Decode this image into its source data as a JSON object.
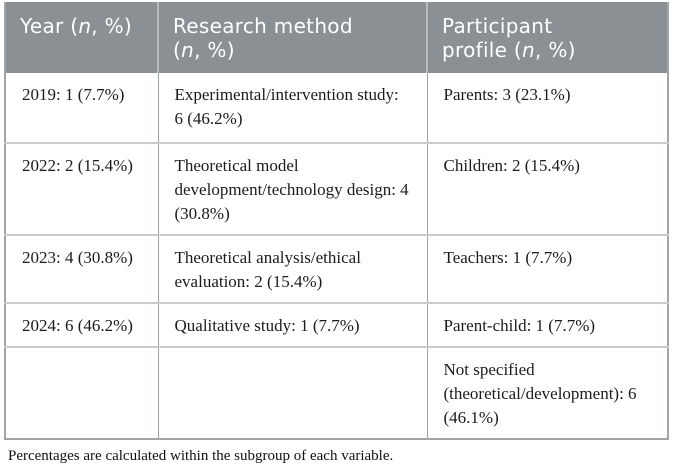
{
  "colors": {
    "header_bg": "#8b9094",
    "header_text": "#ffffff",
    "outer_border": "#a0a5a7",
    "row_divider": "#c7cbcc",
    "column_divider": "#9da2a4",
    "body_text": "#1b1b1b"
  },
  "table": {
    "columns": [
      {
        "id": "year",
        "header_lines": [
          [
            "Year (",
            {
              "i": "n"
            },
            ", %)"
          ]
        ]
      },
      {
        "id": "research-method",
        "header_lines": [
          [
            "Research method"
          ],
          [
            "(",
            {
              "i": "n"
            },
            ", %)"
          ]
        ]
      },
      {
        "id": "participant-profile",
        "header_lines": [
          [
            "Participant"
          ],
          [
            "profile (",
            {
              "i": "n"
            },
            ", %)"
          ]
        ]
      }
    ],
    "rows": [
      [
        "2019: 1 (7.7%)",
        "Experimental/intervention study: 6 (46.2%)",
        "Parents: 3 (23.1%)"
      ],
      [
        "2022: 2 (15.4%)",
        "Theoretical model development/technology design: 4 (30.8%)",
        "Children: 2 (15.4%)"
      ],
      [
        "2023: 4 (30.8%)",
        "Theoretical analysis/ethical evaluation: 2 (15.4%)",
        "Teachers: 1 (7.7%)"
      ],
      [
        "2024: 6 (46.2%)",
        "Qualitative study: 1 (7.7%)",
        "Parent-child: 1 (7.7%)"
      ],
      [
        "",
        "",
        "Not specified (theoretical/development): 6 (46.1%)"
      ]
    ]
  },
  "footnote": "Percentages are calculated within the subgroup of each variable."
}
